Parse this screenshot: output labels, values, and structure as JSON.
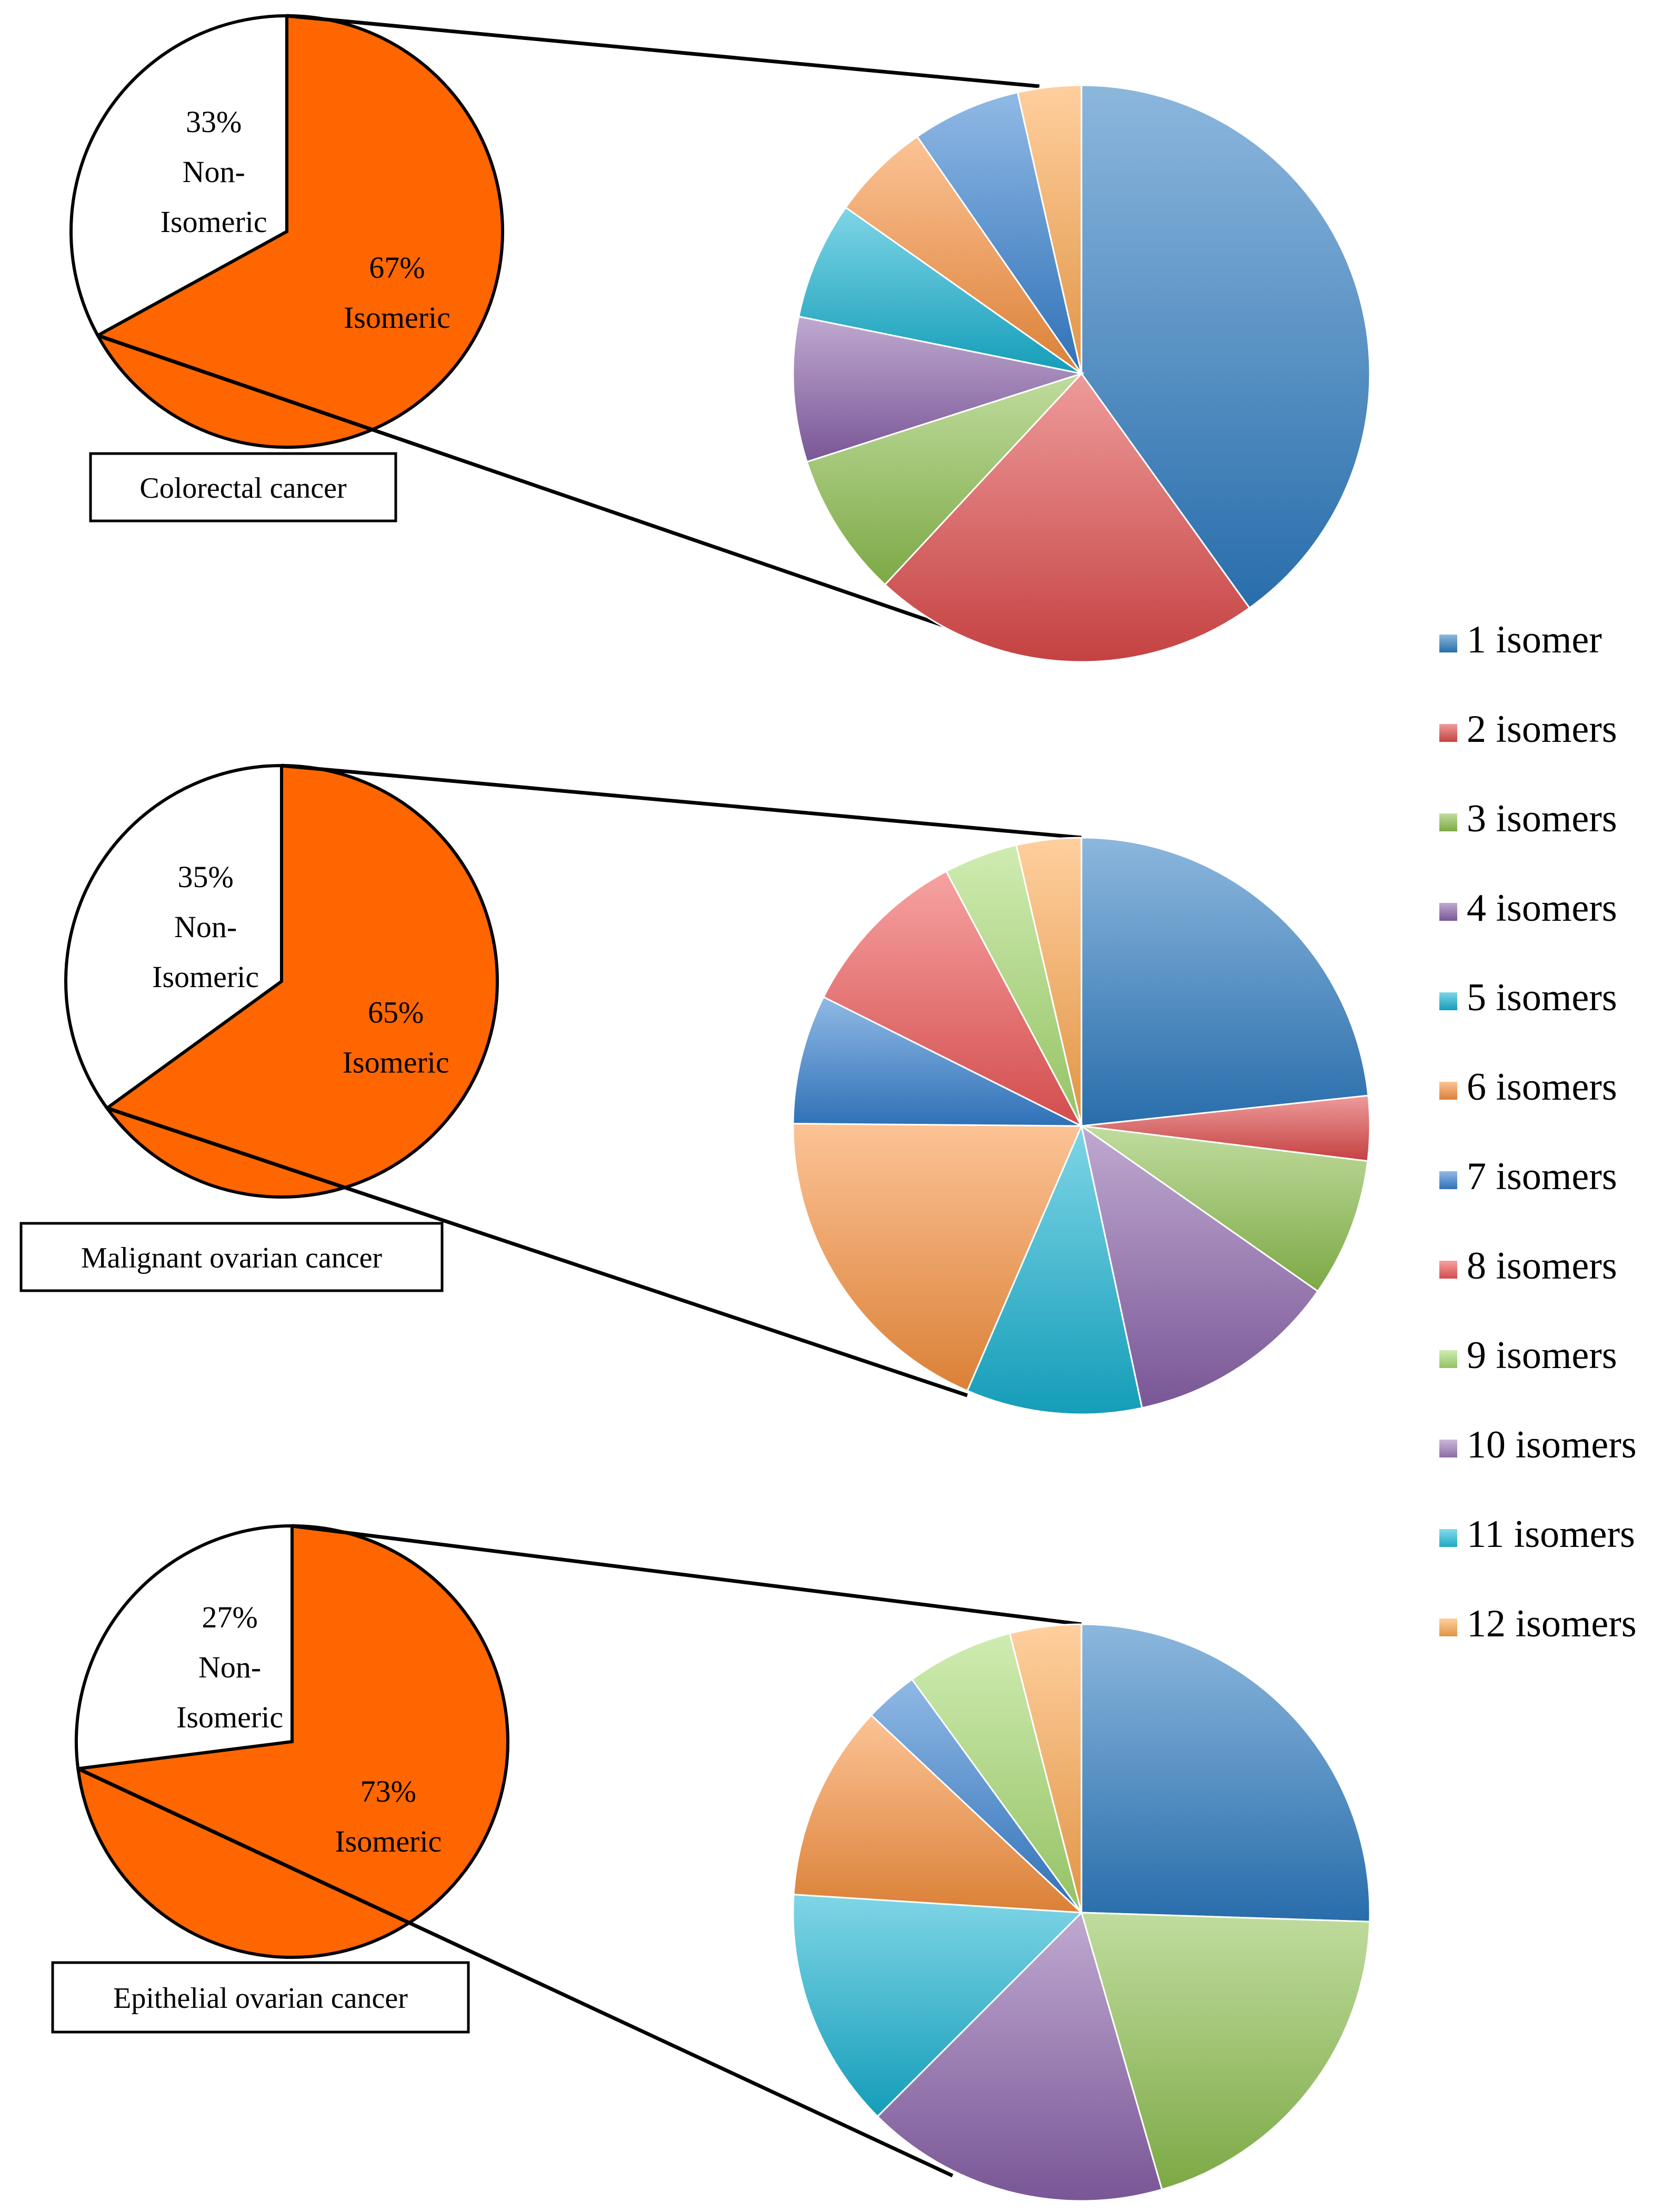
{
  "chart_data": [
    {
      "type": "pie",
      "title": "Colorectal cancer",
      "overview": [
        {
          "name": "Isomeric",
          "value": 67,
          "label_pct": "67%",
          "label_text": "Isomeric",
          "color": "#FF6600"
        },
        {
          "name": "Non-Isomeric",
          "value": 33,
          "label_pct": "33%",
          "label_lines": [
            "Non-",
            "Isomeric"
          ],
          "color": "#FFFFFF"
        }
      ],
      "breakdown": [
        {
          "name": "1 isomer",
          "value": 39.5
        },
        {
          "name": "2 isomers",
          "value": 21.5
        },
        {
          "name": "3 isomers",
          "value": 8
        },
        {
          "name": "4 isomers",
          "value": 8
        },
        {
          "name": "5 isomers",
          "value": 6.5
        },
        {
          "name": "6 isomers",
          "value": 5.5
        },
        {
          "name": "7 isomers",
          "value": 6
        },
        {
          "name": "8 isomers",
          "value": 0
        },
        {
          "name": "9 isomers",
          "value": 0
        },
        {
          "name": "10 isomers",
          "value": 0
        },
        {
          "name": "11 isomers",
          "value": 0
        },
        {
          "name": "12 isomers",
          "value": 3.5
        }
      ]
    },
    {
      "type": "pie",
      "title": "Malignant ovarian cancer",
      "overview": [
        {
          "name": "Isomeric",
          "value": 65,
          "label_pct": "65%",
          "label_text": "Isomeric",
          "color": "#FF6600"
        },
        {
          "name": "Non-Isomeric",
          "value": 35,
          "label_pct": "35%",
          "label_lines": [
            "Non-",
            "Isomeric"
          ],
          "color": "#FFFFFF"
        }
      ],
      "breakdown": [
        {
          "name": "1 isomer",
          "value": 22.5
        },
        {
          "name": "2 isomers",
          "value": 3.5
        },
        {
          "name": "3 isomers",
          "value": 7.5
        },
        {
          "name": "4 isomers",
          "value": 11.5
        },
        {
          "name": "5 isomers",
          "value": 9.5
        },
        {
          "name": "6 isomers",
          "value": 18
        },
        {
          "name": "7 isomers",
          "value": 7
        },
        {
          "name": "8 isomers",
          "value": 9.5
        },
        {
          "name": "9 isomers",
          "value": 4
        },
        {
          "name": "10 isomers",
          "value": 0
        },
        {
          "name": "11 isomers",
          "value": 0
        },
        {
          "name": "12 isomers",
          "value": 3.5
        }
      ]
    },
    {
      "type": "pie",
      "title": "Epithelial ovarian cancer",
      "overview": [
        {
          "name": "Isomeric",
          "value": 73,
          "label_pct": "73%",
          "label_text": "Isomeric",
          "color": "#FF6600"
        },
        {
          "name": "Non-Isomeric",
          "value": 27,
          "label_pct": "27%",
          "label_lines": [
            "Non-",
            "Isomeric"
          ],
          "color": "#FFFFFF"
        }
      ],
      "breakdown": [
        {
          "name": "1 isomer",
          "value": 25.5
        },
        {
          "name": "2 isomers",
          "value": 0
        },
        {
          "name": "3 isomers",
          "value": 20
        },
        {
          "name": "4 isomers",
          "value": 17
        },
        {
          "name": "5 isomers",
          "value": 13.5
        },
        {
          "name": "6 isomers",
          "value": 11
        },
        {
          "name": "7 isomers",
          "value": 3
        },
        {
          "name": "8 isomers",
          "value": 0
        },
        {
          "name": "9 isomers",
          "value": 6
        },
        {
          "name": "10 isomers",
          "value": 0
        },
        {
          "name": "11 isomers",
          "value": 0
        },
        {
          "name": "12 isomers",
          "value": 4
        }
      ]
    }
  ],
  "legend": {
    "placement": "right",
    "items": [
      {
        "label": "1 isomer",
        "color": "#2E7CC2"
      },
      {
        "label": "2 isomers",
        "color": "#E04A4A"
      },
      {
        "label": "3 isomers",
        "color": "#8DC04E"
      },
      {
        "label": "4 isomers",
        "color": "#8A62AA"
      },
      {
        "label": "5 isomers",
        "color": "#17B2D2"
      },
      {
        "label": "6 isomers",
        "color": "#F9923F"
      },
      {
        "label": "7 isomers",
        "color": "#3580D0"
      },
      {
        "label": "8 isomers",
        "color": "#F05656"
      },
      {
        "label": "9 isomers",
        "color": "#A8DC72"
      },
      {
        "label": "10 isomers",
        "color": "#9E7CBC"
      },
      {
        "label": "11 isomers",
        "color": "#22C0DC"
      },
      {
        "label": "12 isomers",
        "color": "#FFA84E"
      }
    ]
  }
}
